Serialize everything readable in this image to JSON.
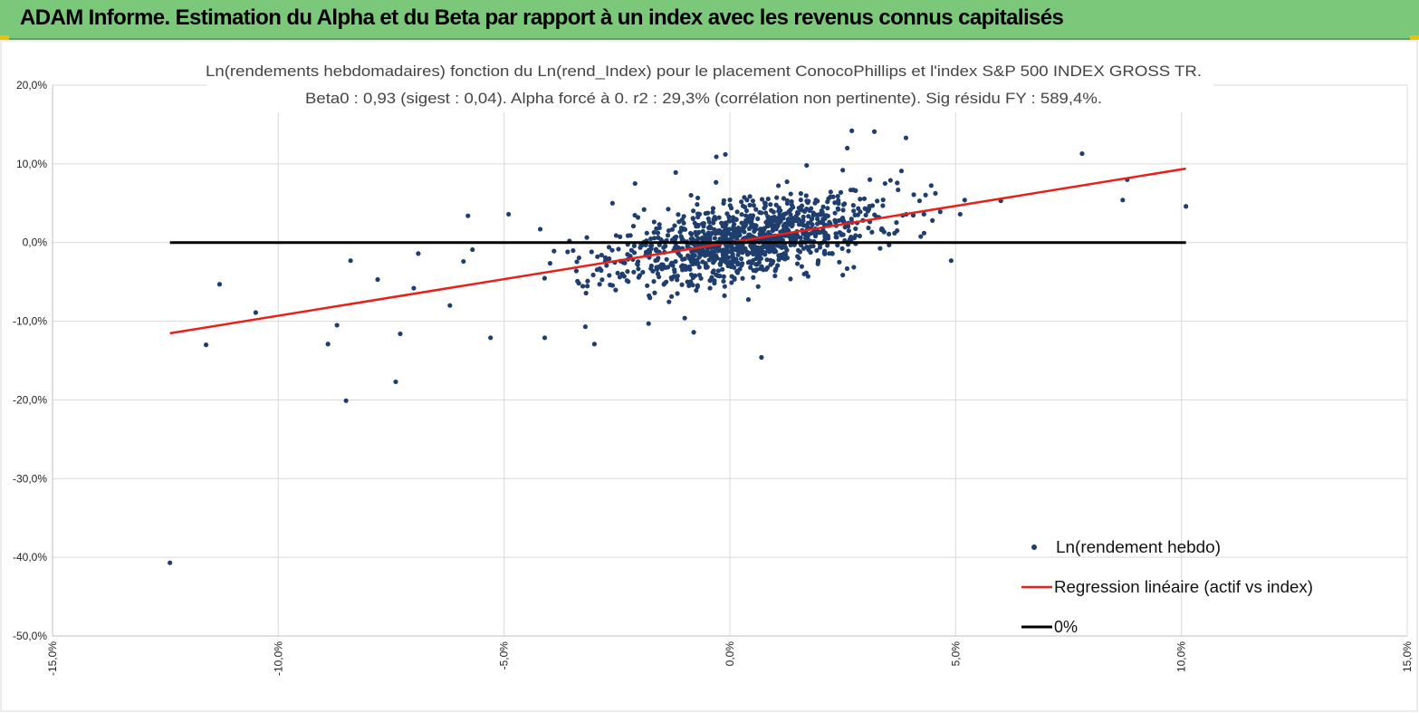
{
  "header": {
    "title": "ADAM Informe. Estimation du Alpha et du Beta par rapport à un index avec les revenus connus capitalisés",
    "background_color": "#7cc87a"
  },
  "chart_data": {
    "type": "scatter",
    "title_line1": "Ln(rendements hebdomadaires) fonction du Ln(rend_Index) pour le placement ConocoPhillips et l'index S&P 500 INDEX GROSS TR.",
    "title_line2": "Beta0 : 0,93 (sigest : 0,04). Alpha forcé à 0. r2 : 29,3% (corrélation non pertinente). Sig résidu FY : 589,4%.",
    "xlim": [
      -15,
      15
    ],
    "ylim": [
      -50,
      20
    ],
    "x_ticks": [
      -15,
      -10,
      -5,
      0,
      5,
      10,
      15
    ],
    "y_ticks": [
      -50,
      -40,
      -30,
      -20,
      -10,
      0,
      10,
      20
    ],
    "x_tick_labels": [
      "-15,0%",
      "-10,0%",
      "-5,0%",
      "0,0%",
      "5,0%",
      "10,0%",
      "15,0%"
    ],
    "y_tick_labels": [
      "-50,0%",
      "-40,0%",
      "-30,0%",
      "-20,0%",
      "-10,0%",
      "0,0%",
      "10,0%",
      "20,0%"
    ],
    "beta": 0.93,
    "series": [
      {
        "name": "Ln(rendement hebdo)",
        "kind": "scatter",
        "color": "#1f3e6e",
        "note": "outliers listed; dense cloud of ~1500 weekly points around origin",
        "points": [
          [
            -12.4,
            -40.7
          ],
          [
            -11.6,
            -13.0
          ],
          [
            -11.3,
            -5.3
          ],
          [
            -10.5,
            -8.9
          ],
          [
            -8.9,
            -12.9
          ],
          [
            -8.7,
            -10.5
          ],
          [
            -8.5,
            -20.1
          ],
          [
            -8.4,
            -2.3
          ],
          [
            -7.8,
            -4.7
          ],
          [
            -7.4,
            -17.7
          ],
          [
            -7.3,
            -11.6
          ],
          [
            -7.0,
            -5.8
          ],
          [
            -6.9,
            -1.4
          ],
          [
            -6.2,
            -8.0
          ],
          [
            -5.9,
            -2.4
          ],
          [
            -5.8,
            3.4
          ],
          [
            -5.7,
            -0.9
          ],
          [
            -5.3,
            -12.1
          ],
          [
            -4.9,
            3.6
          ],
          [
            -4.1,
            -12.1
          ],
          [
            -4.2,
            1.7
          ],
          [
            -3.0,
            -12.9
          ],
          [
            -3.2,
            -10.7
          ],
          [
            -2.6,
            5.0
          ],
          [
            -2.1,
            7.5
          ],
          [
            -1.9,
            4.2
          ],
          [
            -1.8,
            -10.3
          ],
          [
            -1.2,
            8.9
          ],
          [
            -1.0,
            -9.6
          ],
          [
            -0.8,
            -11.4
          ],
          [
            -0.3,
            10.9
          ],
          [
            -0.1,
            11.2
          ],
          [
            0.7,
            -14.6
          ],
          [
            1.7,
            9.8
          ],
          [
            2.5,
            9.2
          ],
          [
            2.6,
            12.0
          ],
          [
            2.7,
            14.2
          ],
          [
            3.1,
            8.0
          ],
          [
            3.2,
            14.1
          ],
          [
            3.8,
            9.1
          ],
          [
            3.9,
            13.3
          ],
          [
            4.2,
            5.3
          ],
          [
            4.3,
            1.2
          ],
          [
            4.9,
            -2.3
          ],
          [
            5.2,
            5.4
          ],
          [
            5.1,
            3.6
          ],
          [
            6.0,
            5.3
          ],
          [
            7.8,
            11.3
          ],
          [
            8.7,
            5.4
          ],
          [
            8.8,
            8.0
          ],
          [
            10.1,
            4.6
          ]
        ]
      },
      {
        "name": "Regression linéaire (actif vs index)",
        "kind": "line",
        "color": "#e8201a",
        "x_range": [
          -12.4,
          10.1
        ]
      },
      {
        "name": "0%",
        "kind": "line",
        "color": "#000000",
        "x_range": [
          -12.4,
          10.1
        ],
        "y_value": 0
      }
    ],
    "legend": {
      "position": "bottom-right",
      "entries": [
        "Ln(rendement hebdo)",
        "Regression linéaire (actif vs index)",
        "0%"
      ]
    }
  }
}
